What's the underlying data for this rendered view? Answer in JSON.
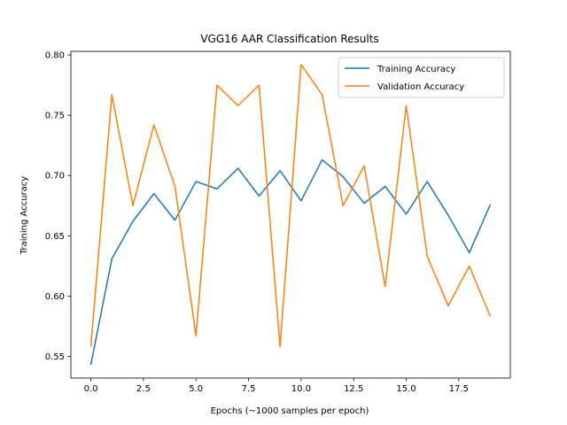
{
  "chart_data": {
    "type": "line",
    "title": "VGG16 AAR Classification Results",
    "xlabel": "Epochs (~1000 samples per epoch)",
    "ylabel": "Training Accuracy",
    "xlim": [
      -0.95,
      19.95
    ],
    "ylim": [
      0.532,
      0.803
    ],
    "xticks": [
      0.0,
      2.5,
      5.0,
      7.5,
      10.0,
      12.5,
      15.0,
      17.5
    ],
    "xtick_labels": [
      "0.0",
      "2.5",
      "5.0",
      "7.5",
      "10.0",
      "12.5",
      "15.0",
      "17.5"
    ],
    "yticks": [
      0.55,
      0.6,
      0.65,
      0.7,
      0.75,
      0.8
    ],
    "ytick_labels": [
      "0.55",
      "0.60",
      "0.65",
      "0.70",
      "0.75",
      "0.80"
    ],
    "grid": false,
    "legend_position": "top-right",
    "x": [
      0,
      1,
      2,
      3,
      4,
      5,
      6,
      7,
      8,
      9,
      10,
      11,
      12,
      13,
      14,
      15,
      16,
      17,
      18,
      19
    ],
    "series": [
      {
        "name": "Training Accuracy",
        "color": "#1f77b4",
        "values": [
          0.543,
          0.631,
          0.662,
          0.685,
          0.663,
          0.695,
          0.689,
          0.706,
          0.683,
          0.704,
          0.679,
          0.713,
          0.699,
          0.677,
          0.691,
          0.668,
          0.695,
          0.667,
          0.636,
          0.676
        ]
      },
      {
        "name": "Validation Accuracy",
        "color": "#ff7f0e",
        "values": [
          0.558,
          0.767,
          0.675,
          0.742,
          0.691,
          0.567,
          0.775,
          0.758,
          0.775,
          0.558,
          0.792,
          0.767,
          0.675,
          0.708,
          0.608,
          0.758,
          0.633,
          0.592,
          0.625,
          0.583
        ]
      }
    ]
  }
}
